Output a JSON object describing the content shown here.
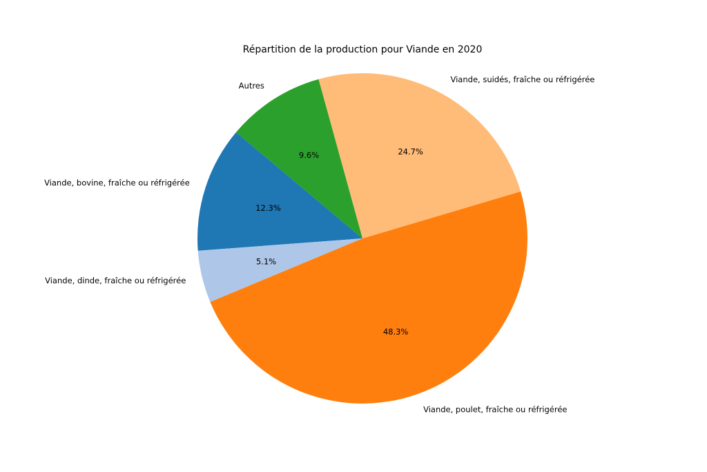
{
  "chart_data": {
    "type": "pie",
    "title": "Répartition de la production pour Viande en 2020",
    "start_angle": 140,
    "direction": "counterclockwise",
    "slices": [
      {
        "label": "Viande, bovine, fraîche ou réfrigérée",
        "value": 12.3,
        "pct_label": "12.3%",
        "color": "#1f77b4"
      },
      {
        "label": "Viande, dinde, fraîche ou réfrigérée",
        "value": 5.1,
        "pct_label": "5.1%",
        "color": "#aec7e8"
      },
      {
        "label": "Viande, poulet, fraîche ou réfrigérée",
        "value": 48.3,
        "pct_label": "48.3%",
        "color": "#ff7f0e"
      },
      {
        "label": "Viande, suidés, fraîche ou réfrigérée",
        "value": 24.7,
        "pct_label": "24.7%",
        "color": "#ffbb78"
      },
      {
        "label": "Autres",
        "value": 9.6,
        "pct_label": "9.6%",
        "color": "#2ca02c"
      }
    ]
  }
}
